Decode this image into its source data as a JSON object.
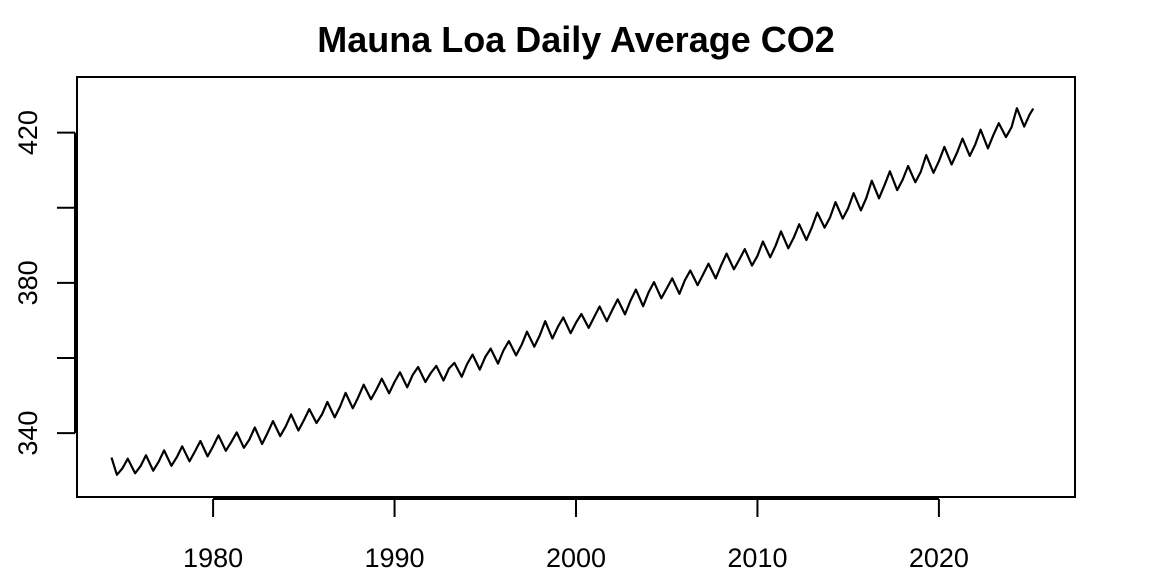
{
  "chart_data": {
    "type": "line",
    "title": "Mauna Loa Daily Average CO2",
    "xlabel": "",
    "ylabel": "",
    "xlim": [
      1972.5,
      2027.5
    ],
    "ylim": [
      323.0,
      434.8
    ],
    "x_ticks": [
      1980,
      1990,
      2000,
      2010,
      2020
    ],
    "x_tick_labels": [
      "1980",
      "1990",
      "2000",
      "2010",
      "2020"
    ],
    "y_ticks": [
      340,
      360,
      380,
      400,
      420
    ],
    "y_tick_labels": [
      "340",
      "",
      "380",
      "",
      "420"
    ],
    "grid": false,
    "legend": "none",
    "series": [
      {
        "color": "#000000",
        "x": [
          1974.4,
          1974.7,
          1975.0,
          1975.3,
          1975.7,
          1976.0,
          1976.3,
          1976.7,
          1977.0,
          1977.3,
          1977.7,
          1978.0,
          1978.3,
          1978.7,
          1979.0,
          1979.3,
          1979.7,
          1980.0,
          1980.3,
          1980.7,
          1981.0,
          1981.3,
          1981.7,
          1982.0,
          1982.3,
          1982.7,
          1983.0,
          1983.3,
          1983.7,
          1984.0,
          1984.3,
          1984.7,
          1985.0,
          1985.3,
          1985.7,
          1986.0,
          1986.3,
          1986.7,
          1987.0,
          1987.3,
          1987.7,
          1988.0,
          1988.3,
          1988.7,
          1989.0,
          1989.3,
          1989.7,
          1990.0,
          1990.3,
          1990.7,
          1991.0,
          1991.3,
          1991.7,
          1992.0,
          1992.3,
          1992.7,
          1993.0,
          1993.3,
          1993.7,
          1994.0,
          1994.3,
          1994.7,
          1995.0,
          1995.3,
          1995.7,
          1996.0,
          1996.3,
          1996.7,
          1997.0,
          1997.3,
          1997.7,
          1998.0,
          1998.3,
          1998.7,
          1999.0,
          1999.3,
          1999.7,
          2000.0,
          2000.3,
          2000.7,
          2001.0,
          2001.3,
          2001.7,
          2002.0,
          2002.3,
          2002.7,
          2003.0,
          2003.3,
          2003.7,
          2004.0,
          2004.3,
          2004.7,
          2005.0,
          2005.3,
          2005.7,
          2006.0,
          2006.3,
          2006.7,
          2007.0,
          2007.3,
          2007.7,
          2008.0,
          2008.3,
          2008.7,
          2009.0,
          2009.3,
          2009.7,
          2010.0,
          2010.3,
          2010.7,
          2011.0,
          2011.3,
          2011.7,
          2012.0,
          2012.3,
          2012.7,
          2013.0,
          2013.3,
          2013.7,
          2014.0,
          2014.3,
          2014.7,
          2015.0,
          2015.3,
          2015.7,
          2016.0,
          2016.3,
          2016.7,
          2017.0,
          2017.3,
          2017.7,
          2018.0,
          2018.3,
          2018.7,
          2019.0,
          2019.3,
          2019.7,
          2020.0,
          2020.3,
          2020.7,
          2021.0,
          2021.3,
          2021.7,
          2022.0,
          2022.3,
          2022.7,
          2023.0,
          2023.3,
          2023.7,
          2024.0,
          2024.3,
          2024.7,
          2025.0,
          2025.2
        ],
        "y": [
          333.5,
          328.9,
          330.6,
          333.2,
          329.3,
          331.2,
          334.1,
          330.0,
          332.4,
          335.4,
          331.3,
          333.6,
          336.5,
          332.5,
          335.1,
          337.9,
          333.8,
          336.5,
          339.4,
          335.3,
          337.6,
          340.2,
          336.1,
          338.3,
          341.5,
          337.1,
          340.0,
          343.2,
          339.2,
          341.8,
          345.0,
          340.7,
          343.4,
          346.4,
          342.7,
          345.0,
          348.3,
          344.2,
          347.1,
          350.7,
          346.6,
          349.6,
          352.9,
          349.0,
          351.6,
          354.5,
          350.6,
          353.6,
          356.2,
          352.2,
          355.5,
          357.6,
          353.6,
          356.0,
          357.9,
          354.0,
          357.2,
          358.7,
          355.0,
          358.4,
          360.9,
          356.9,
          360.3,
          362.5,
          358.5,
          362.0,
          364.5,
          360.7,
          363.5,
          367.0,
          363.0,
          366.0,
          369.8,
          365.2,
          368.3,
          370.8,
          366.6,
          369.4,
          371.7,
          368.0,
          370.9,
          373.7,
          369.8,
          372.8,
          375.6,
          371.6,
          375.2,
          378.2,
          373.8,
          377.5,
          380.2,
          375.9,
          378.5,
          381.2,
          377.1,
          380.7,
          383.3,
          379.4,
          382.2,
          385.1,
          381.2,
          384.7,
          387.8,
          383.6,
          386.2,
          389.0,
          384.6,
          387.2,
          391.0,
          386.8,
          389.9,
          393.7,
          389.2,
          392.0,
          395.6,
          391.4,
          394.8,
          398.7,
          394.7,
          397.4,
          401.5,
          397.1,
          399.9,
          403.9,
          399.3,
          402.6,
          407.2,
          402.5,
          406.0,
          409.7,
          404.7,
          407.4,
          411.1,
          406.8,
          409.6,
          414.0,
          409.3,
          412.4,
          416.2,
          411.5,
          414.7,
          418.4,
          413.8,
          416.8,
          420.8,
          415.8,
          419.3,
          422.5,
          418.8,
          421.4,
          426.5,
          421.6,
          424.8,
          426.4
        ]
      }
    ]
  }
}
